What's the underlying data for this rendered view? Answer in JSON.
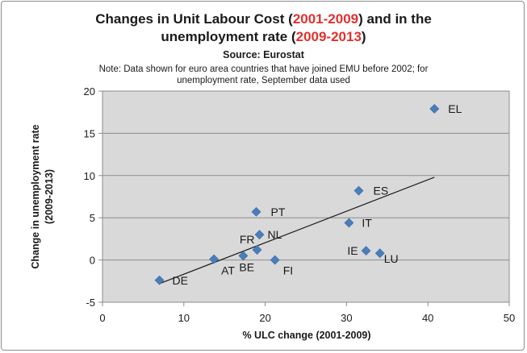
{
  "chart_data": {
    "type": "scatter",
    "title_parts": [
      "Changes in Unit Labour Cost (",
      "2001-2009",
      ") and in the"
    ],
    "title_line2_parts": [
      "unemployment rate (",
      "2009-2013",
      ")"
    ],
    "subtitle": "Source: Eurostat",
    "note_line1": "Note: Data shown for euro area countries that have joined EMU before 2002; for",
    "note_line2": "unemployment rate, September data used",
    "xlabel": "% ULC change (2001-2009)",
    "ylabel_line1": "Change in unemployment rate",
    "ylabel_line2": "(2009-2013)",
    "xlim": [
      0,
      50
    ],
    "ylim": [
      -5,
      20
    ],
    "xticks": [
      "0",
      "10",
      "20",
      "30",
      "40",
      "50"
    ],
    "yticks": [
      "-5",
      "0",
      "5",
      "10",
      "15",
      "20"
    ],
    "grid": "horizontal",
    "marker_color": "#4a7ebb",
    "highlight_color": "#e0312f",
    "points": [
      {
        "label": "DE",
        "x": 7.0,
        "y": -2.4
      },
      {
        "label": "AT",
        "x": 13.7,
        "y": 0.1
      },
      {
        "label": "BE",
        "x": 17.3,
        "y": 0.5
      },
      {
        "label": "FR",
        "x": 19.0,
        "y": 1.2
      },
      {
        "label": "NL",
        "x": 19.3,
        "y": 3.0
      },
      {
        "label": "PT",
        "x": 18.9,
        "y": 5.7
      },
      {
        "label": "FI",
        "x": 21.2,
        "y": 0.0
      },
      {
        "label": "IT",
        "x": 30.3,
        "y": 4.4
      },
      {
        "label": "ES",
        "x": 31.5,
        "y": 8.2
      },
      {
        "label": "IE",
        "x": 32.4,
        "y": 1.1
      },
      {
        "label": "LU",
        "x": 34.1,
        "y": 0.8
      },
      {
        "label": "EL",
        "x": 40.8,
        "y": 17.9
      }
    ],
    "trendline": {
      "x": [
        7.0,
        40.8
      ],
      "y": [
        -2.8,
        9.8
      ]
    }
  }
}
